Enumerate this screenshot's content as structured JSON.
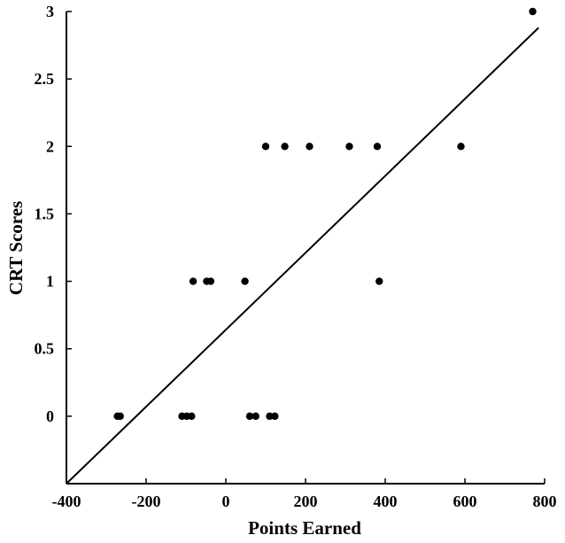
{
  "chart_data": {
    "type": "scatter",
    "title": "",
    "xlabel": "Points Earned",
    "ylabel": "CRT Scores",
    "xlim": [
      -400,
      800
    ],
    "ylim": [
      -0.5,
      3
    ],
    "xticks": [
      -400,
      -200,
      0,
      200,
      400,
      600,
      800
    ],
    "yticks": [
      0,
      0.5,
      1,
      1.5,
      2,
      2.5,
      3
    ],
    "grid": false,
    "legend": "none",
    "points": [
      {
        "x": -272,
        "y": 0
      },
      {
        "x": -265,
        "y": 0
      },
      {
        "x": -110,
        "y": 0
      },
      {
        "x": -98,
        "y": 0
      },
      {
        "x": -86,
        "y": 0
      },
      {
        "x": 60,
        "y": 0
      },
      {
        "x": 75,
        "y": 0
      },
      {
        "x": 110,
        "y": 0
      },
      {
        "x": 123,
        "y": 0
      },
      {
        "x": -82,
        "y": 1
      },
      {
        "x": -48,
        "y": 1
      },
      {
        "x": -38,
        "y": 1
      },
      {
        "x": 48,
        "y": 1
      },
      {
        "x": 385,
        "y": 1
      },
      {
        "x": 100,
        "y": 2
      },
      {
        "x": 148,
        "y": 2
      },
      {
        "x": 210,
        "y": 2
      },
      {
        "x": 310,
        "y": 2
      },
      {
        "x": 380,
        "y": 2
      },
      {
        "x": 590,
        "y": 2
      },
      {
        "x": 770,
        "y": 3
      }
    ],
    "fit_line": {
      "x": [
        -400,
        785
      ],
      "y": [
        -0.5,
        2.88
      ]
    },
    "colors": {
      "points": "#000000",
      "line": "#000000",
      "axis": "#000000"
    }
  }
}
